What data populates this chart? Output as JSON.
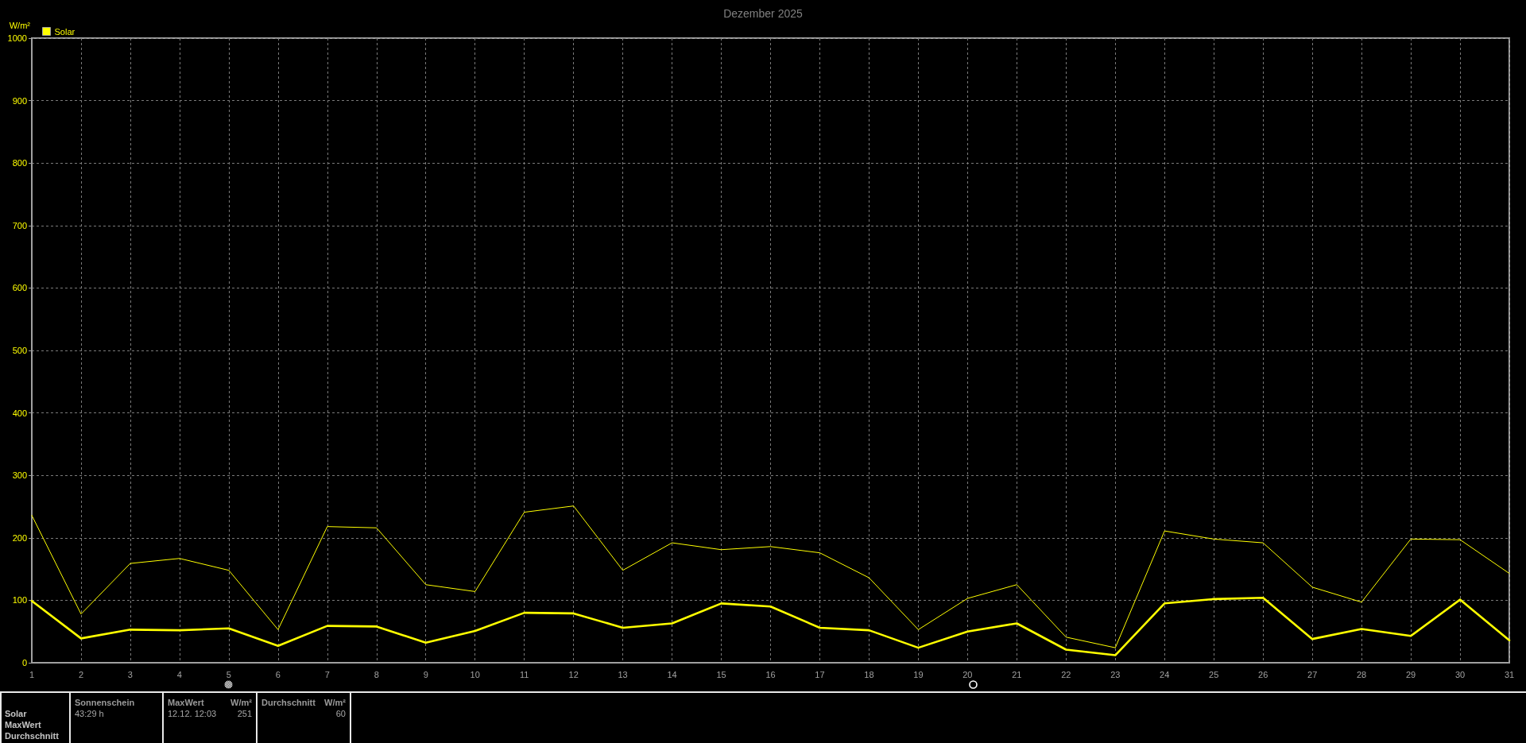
{
  "chart_data": [
    {
      "type": "line",
      "title": "Dezember 2025",
      "ylabel": "W/m²",
      "x": [
        1,
        2,
        3,
        4,
        5,
        6,
        7,
        8,
        9,
        10,
        11,
        12,
        13,
        14,
        15,
        16,
        17,
        18,
        19,
        20,
        21,
        22,
        23,
        24,
        25,
        26,
        27,
        28,
        29,
        30,
        31
      ],
      "series": [
        {
          "name": "Solar",
          "color": "#ffff00",
          "values": [
            99,
            39,
            53,
            52,
            55,
            27,
            59,
            58,
            32,
            51,
            80,
            79,
            56,
            63,
            95,
            90,
            56,
            52,
            24,
            50,
            63,
            21,
            12,
            95,
            102,
            104,
            38,
            54,
            43,
            101,
            36
          ]
        },
        {
          "color": "#ffff00",
          "values": [
            236,
            78,
            159,
            167,
            148,
            53,
            218,
            216,
            125,
            114,
            241,
            251,
            148,
            192,
            181,
            186,
            176,
            136,
            53,
            103,
            125,
            41,
            24,
            211,
            198,
            192,
            121,
            97,
            198,
            197,
            143
          ]
        }
      ],
      "xlim": [
        1,
        31
      ],
      "xticks": [
        1,
        2,
        3,
        4,
        5,
        6,
        7,
        8,
        9,
        10,
        11,
        12,
        13,
        14,
        15,
        16,
        17,
        18,
        19,
        20,
        21,
        22,
        23,
        24,
        25,
        26,
        27,
        28,
        29,
        30,
        31
      ],
      "ylim": [
        0,
        1000
      ],
      "yticks": [
        0,
        100,
        200,
        300,
        400,
        500,
        600,
        700,
        800,
        900,
        1000
      ],
      "grid": true,
      "legend": "top left",
      "marker": "none",
      "line_style": "solid"
    },
    {
      "type": "other",
      "annotations": [
        "Solar",
        "MaxWert",
        "Durchschnitt",
        "Sonnenschein",
        "43:29 h",
        "MaxWert",
        "W/m²",
        "12.12. 12:03",
        "251",
        "Durchschnitt",
        "W/m²",
        "60"
      ]
    }
  ]
}
